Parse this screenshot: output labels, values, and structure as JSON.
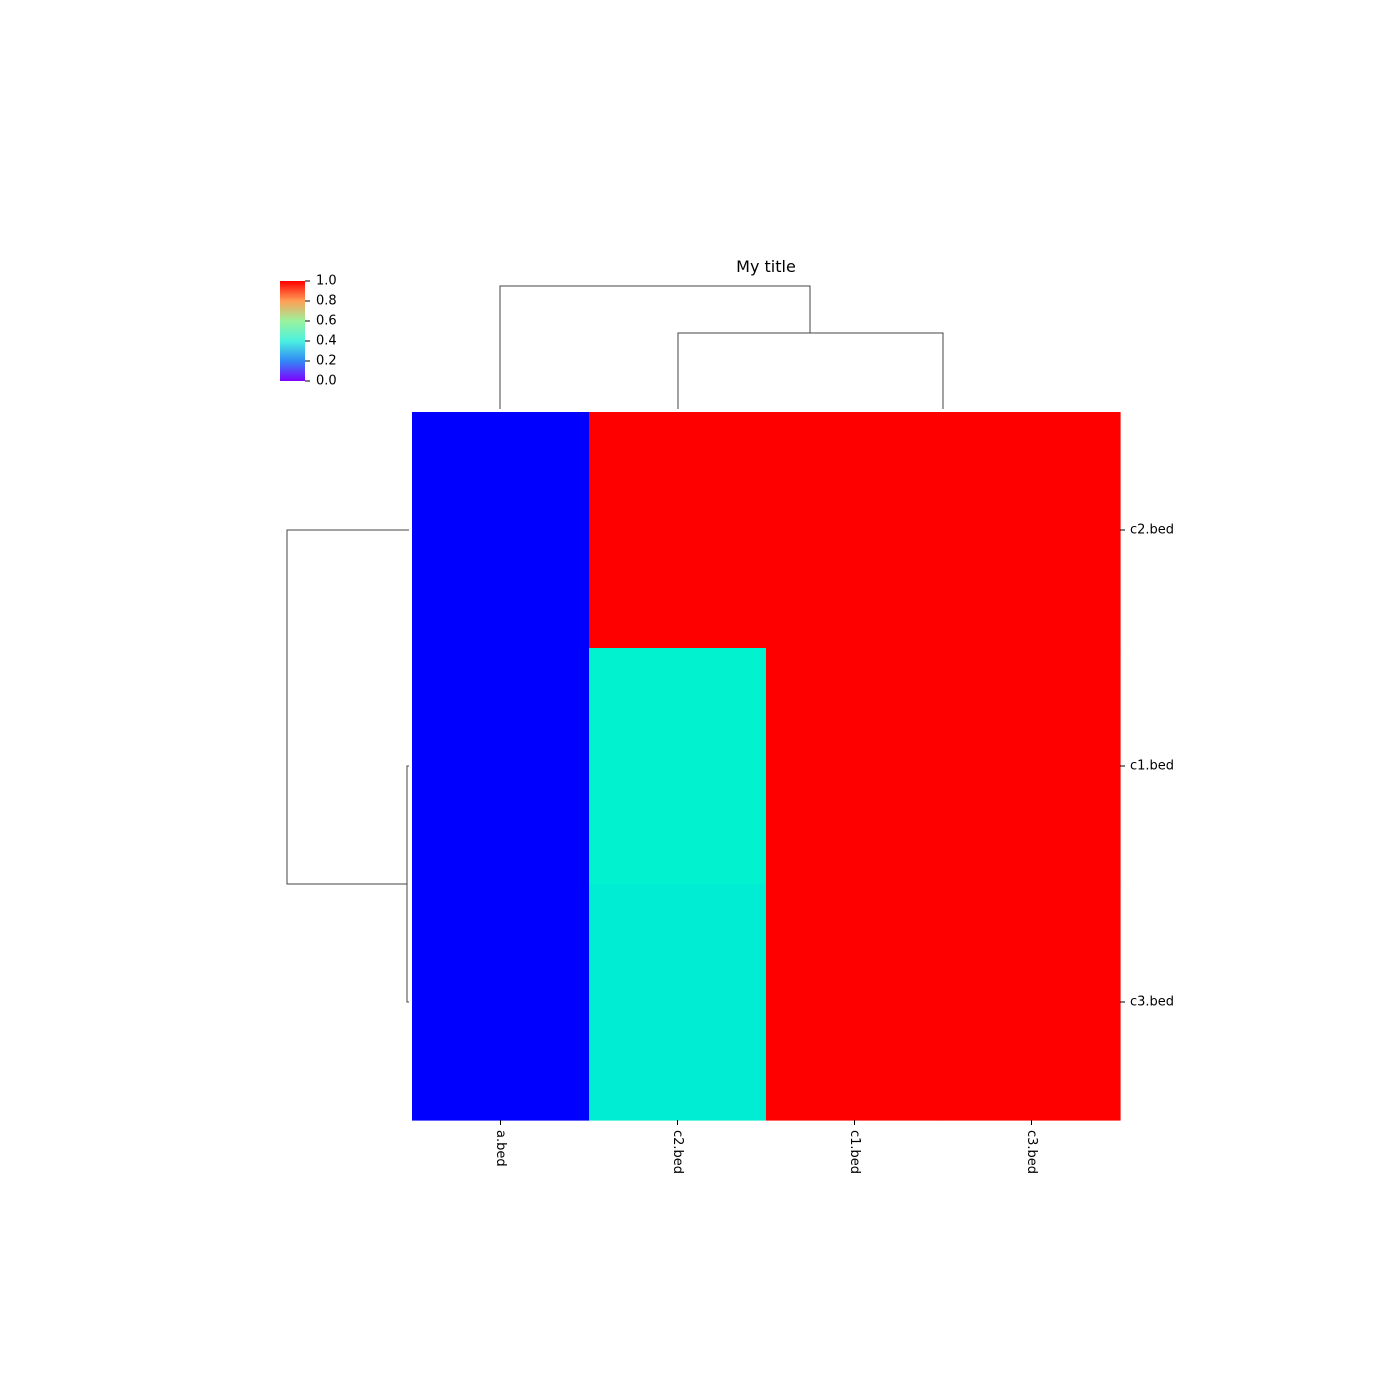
{
  "chart_data": {
    "type": "heatmap",
    "title": "My title",
    "columns": [
      "a.bed",
      "c2.bed",
      "c1.bed",
      "c3.bed"
    ],
    "rows": [
      "c2.bed",
      "c1.bed",
      "c3.bed"
    ],
    "values": [
      [
        0.0,
        1.0,
        1.0,
        1.0
      ],
      [
        0.0,
        0.4,
        1.0,
        1.0
      ],
      [
        0.0,
        0.38,
        1.0,
        1.0
      ]
    ],
    "colormap": "rainbow",
    "colorbar": {
      "min": 0.0,
      "max": 1.0,
      "ticks": [
        "0.0",
        "0.2",
        "0.4",
        "0.6",
        "0.8",
        "1.0"
      ]
    },
    "column_dendrogram": true,
    "row_dendrogram": true,
    "row_labels_position": "right",
    "column_labels_position": "bottom",
    "colorbar_position": "top-left"
  }
}
